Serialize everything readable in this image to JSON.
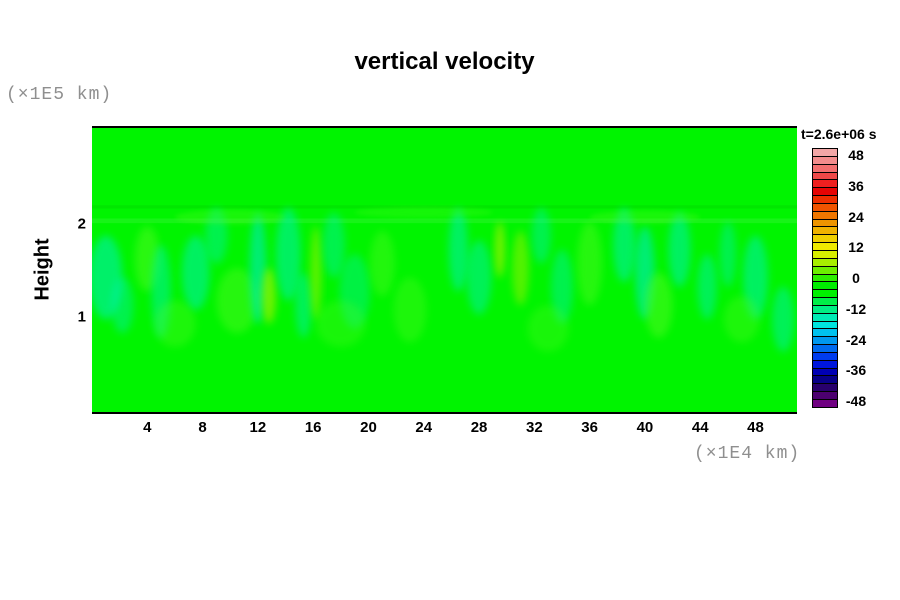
{
  "title": "vertical velocity",
  "axes": {
    "y_unit_label": "(×1E5 km)",
    "y_label": "Height",
    "x_unit_label": "(×1E4 km)"
  },
  "colorbar": {
    "title": "t=2.6e+06 s",
    "tick_labels": [
      "48",
      "36",
      "24",
      "12",
      "0",
      "-12",
      "-24",
      "-36",
      "-48"
    ],
    "cell_colors": [
      "#f2a6a6",
      "#f28c8c",
      "#f26e6e",
      "#ee4848",
      "#ee2020",
      "#e60404",
      "#ee2e00",
      "#f05400",
      "#f07600",
      "#ee9400",
      "#f0b200",
      "#f0d000",
      "#f0ea00",
      "#d8f000",
      "#a8ee00",
      "#6cee00",
      "#2cee00",
      "#00ee00",
      "#00f000",
      "#00ee48",
      "#00ee84",
      "#00ecb6",
      "#00e6e0",
      "#00c2ee",
      "#0098ee",
      "#006aee",
      "#003cee",
      "#0016dc",
      "#0000b4",
      "#080088",
      "#28006c",
      "#4c0070",
      "#700082"
    ]
  },
  "chart_data": {
    "type": "heatmap",
    "title": "vertical velocity",
    "time_label": "t=2.6e+06 s",
    "xlabel": "(×1E4 km)",
    "ylabel": "Height (×1E5 km)",
    "x_ticks": [
      4,
      8,
      12,
      16,
      20,
      24,
      28,
      32,
      36,
      40,
      44,
      48
    ],
    "y_ticks": [
      1,
      2
    ],
    "xlim": [
      0,
      51
    ],
    "ylim": [
      0,
      3.06
    ],
    "value_range": [
      -48,
      48
    ],
    "colorbar_ticks": [
      48,
      36,
      24,
      12,
      0,
      -12,
      -24,
      -36,
      -48
    ],
    "base_color": "#00f400",
    "description": "Vertical velocity field at t=2.6e+06 s: nearly zero (bright green) everywhere, with weak downdrafts (teal/cyan-green patches, roughly -5 to -15) and weak updrafts (yellow-green patches, roughly +5 to +15) concentrated in a convective band between heights ~0.9 and ~2.1 (×1E5 km); faint lighter-green wispy layers near height ~2.0-2.2; uniform green above ~2.3 and below ~0.8.",
    "bands": [
      {
        "h": 2.21,
        "thickness": 0.035,
        "color": "#00dd00",
        "opacity": 0.55
      },
      {
        "h": 2.06,
        "thickness": 0.05,
        "color": "#33f533",
        "opacity": 0.45
      }
    ],
    "features": [
      {
        "x": 1.0,
        "h": 1.45,
        "rx": 1.2,
        "ry": 0.45,
        "color": "#00eec0",
        "opacity": 0.55,
        "blur": 4
      },
      {
        "x": 2.2,
        "h": 1.15,
        "rx": 0.8,
        "ry": 0.3,
        "color": "#00eec0",
        "opacity": 0.4,
        "blur": 4
      },
      {
        "x": 4.0,
        "h": 1.65,
        "rx": 0.9,
        "ry": 0.35,
        "color": "#55fa22",
        "opacity": 0.5,
        "blur": 4
      },
      {
        "x": 5.0,
        "h": 1.3,
        "rx": 0.7,
        "ry": 0.5,
        "color": "#00eec0",
        "opacity": 0.45,
        "blur": 4
      },
      {
        "x": 7.5,
        "h": 1.5,
        "rx": 1.0,
        "ry": 0.4,
        "color": "#00eec0",
        "opacity": 0.5,
        "blur": 4
      },
      {
        "x": 9.0,
        "h": 1.9,
        "rx": 0.8,
        "ry": 0.3,
        "color": "#00eec0",
        "opacity": 0.4,
        "blur": 4
      },
      {
        "x": 10.5,
        "h": 1.2,
        "rx": 1.5,
        "ry": 0.35,
        "color": "#55fa22",
        "opacity": 0.45,
        "blur": 4
      },
      {
        "x": 12.0,
        "h": 1.55,
        "rx": 0.6,
        "ry": 0.6,
        "color": "#00e8d0",
        "opacity": 0.55,
        "blur": 4
      },
      {
        "x": 12.8,
        "h": 1.25,
        "rx": 0.5,
        "ry": 0.3,
        "color": "#b8f000",
        "opacity": 0.6,
        "blur": 4
      },
      {
        "x": 14.2,
        "h": 1.7,
        "rx": 0.9,
        "ry": 0.5,
        "color": "#00eec0",
        "opacity": 0.5,
        "blur": 4
      },
      {
        "x": 15.3,
        "h": 1.15,
        "rx": 0.6,
        "ry": 0.35,
        "color": "#00eec0",
        "opacity": 0.45,
        "blur": 4
      },
      {
        "x": 16.2,
        "h": 1.5,
        "rx": 0.4,
        "ry": 0.5,
        "color": "#b8f000",
        "opacity": 0.5,
        "blur": 4
      },
      {
        "x": 17.5,
        "h": 1.8,
        "rx": 0.8,
        "ry": 0.35,
        "color": "#00eec0",
        "opacity": 0.4,
        "blur": 4
      },
      {
        "x": 19.0,
        "h": 1.3,
        "rx": 1.1,
        "ry": 0.4,
        "color": "#00eec0",
        "opacity": 0.35,
        "blur": 4
      },
      {
        "x": 21.0,
        "h": 1.6,
        "rx": 0.9,
        "ry": 0.35,
        "color": "#55fa22",
        "opacity": 0.4,
        "blur": 4
      },
      {
        "x": 23.0,
        "h": 1.1,
        "rx": 1.2,
        "ry": 0.35,
        "color": "#55fa22",
        "opacity": 0.35,
        "blur": 4
      },
      {
        "x": 26.5,
        "h": 1.75,
        "rx": 0.7,
        "ry": 0.45,
        "color": "#00eec0",
        "opacity": 0.5,
        "blur": 4
      },
      {
        "x": 28.0,
        "h": 1.45,
        "rx": 0.9,
        "ry": 0.4,
        "color": "#00eec0",
        "opacity": 0.45,
        "blur": 4
      },
      {
        "x": 29.5,
        "h": 1.75,
        "rx": 0.35,
        "ry": 0.3,
        "color": "#b8f000",
        "opacity": 0.65,
        "blur": 4
      },
      {
        "x": 31.0,
        "h": 1.55,
        "rx": 0.6,
        "ry": 0.4,
        "color": "#b8f000",
        "opacity": 0.45,
        "blur": 4
      },
      {
        "x": 32.5,
        "h": 1.9,
        "rx": 0.7,
        "ry": 0.3,
        "color": "#00eec0",
        "opacity": 0.4,
        "blur": 4
      },
      {
        "x": 34.0,
        "h": 1.35,
        "rx": 0.8,
        "ry": 0.4,
        "color": "#00eec0",
        "opacity": 0.4,
        "blur": 4
      },
      {
        "x": 36.0,
        "h": 1.6,
        "rx": 0.9,
        "ry": 0.45,
        "color": "#55fa22",
        "opacity": 0.45,
        "blur": 4
      },
      {
        "x": 38.5,
        "h": 1.8,
        "rx": 0.8,
        "ry": 0.4,
        "color": "#00eec0",
        "opacity": 0.5,
        "blur": 4
      },
      {
        "x": 40.0,
        "h": 1.5,
        "rx": 0.7,
        "ry": 0.5,
        "color": "#00e8d0",
        "opacity": 0.55,
        "blur": 4
      },
      {
        "x": 41.0,
        "h": 1.15,
        "rx": 1.0,
        "ry": 0.35,
        "color": "#55fa22",
        "opacity": 0.5,
        "blur": 4
      },
      {
        "x": 42.5,
        "h": 1.75,
        "rx": 0.8,
        "ry": 0.4,
        "color": "#00eec0",
        "opacity": 0.5,
        "blur": 4
      },
      {
        "x": 44.5,
        "h": 1.35,
        "rx": 0.7,
        "ry": 0.35,
        "color": "#00eec0",
        "opacity": 0.45,
        "blur": 4
      },
      {
        "x": 46.0,
        "h": 1.7,
        "rx": 0.6,
        "ry": 0.35,
        "color": "#00eec0",
        "opacity": 0.4,
        "blur": 4
      },
      {
        "x": 48.0,
        "h": 1.45,
        "rx": 0.9,
        "ry": 0.45,
        "color": "#00eec0",
        "opacity": 0.5,
        "blur": 4
      },
      {
        "x": 50.0,
        "h": 1.0,
        "rx": 0.8,
        "ry": 0.35,
        "color": "#00eec0",
        "opacity": 0.45,
        "blur": 4
      },
      {
        "x": 6.0,
        "h": 0.95,
        "rx": 1.5,
        "ry": 0.25,
        "color": "#55fa22",
        "opacity": 0.35,
        "blur": 4
      },
      {
        "x": 18.0,
        "h": 0.95,
        "rx": 1.8,
        "ry": 0.25,
        "color": "#55fa22",
        "opacity": 0.3,
        "blur": 4
      },
      {
        "x": 33.0,
        "h": 0.9,
        "rx": 1.5,
        "ry": 0.25,
        "color": "#55fa22",
        "opacity": 0.3,
        "blur": 4
      },
      {
        "x": 47.0,
        "h": 1.0,
        "rx": 1.3,
        "ry": 0.25,
        "color": "#55fa22",
        "opacity": 0.35,
        "blur": 4
      },
      {
        "x": 10.0,
        "h": 2.1,
        "rx": 4.0,
        "ry": 0.08,
        "color": "#55fa22",
        "opacity": 0.3,
        "blur": 2
      },
      {
        "x": 24.0,
        "h": 2.15,
        "rx": 5.0,
        "ry": 0.06,
        "color": "#55fa22",
        "opacity": 0.25,
        "blur": 2
      },
      {
        "x": 40.0,
        "h": 2.1,
        "rx": 4.0,
        "ry": 0.07,
        "color": "#55fa22",
        "opacity": 0.3,
        "blur": 2
      }
    ]
  }
}
